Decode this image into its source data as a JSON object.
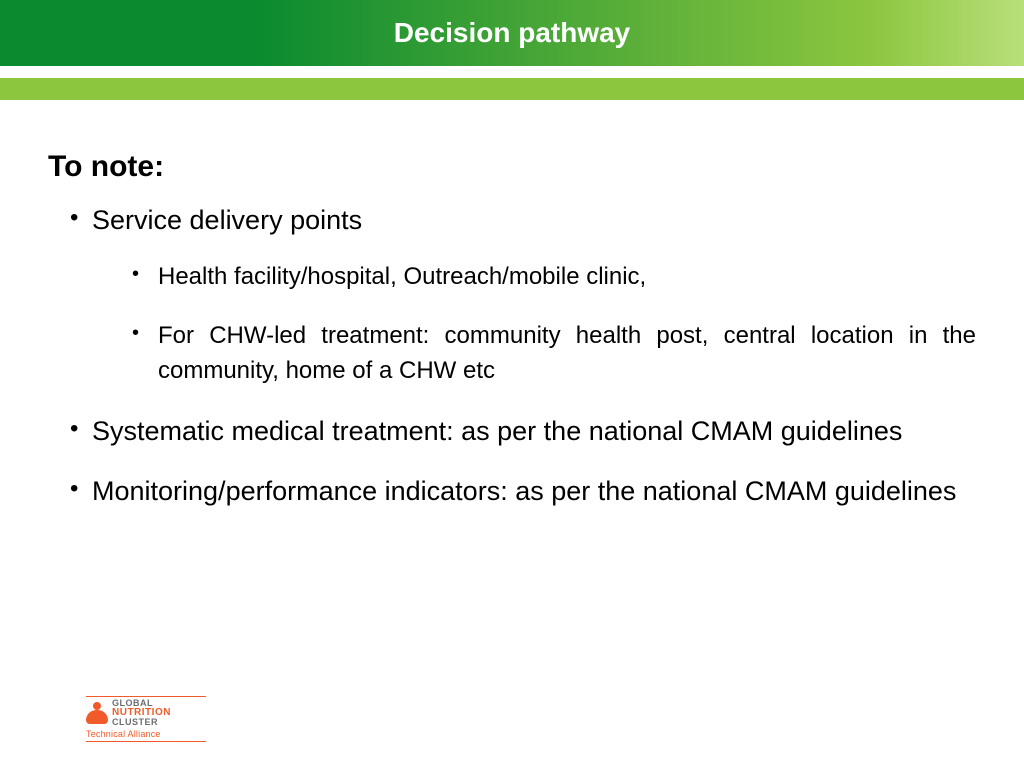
{
  "colors": {
    "header_gradient_start": "#0b8a2f",
    "header_gradient_end": "#8cc63f",
    "accent_bar": "#8cc63f",
    "text": "#000000",
    "title_text": "#ffffff",
    "logo_orange": "#f15a29",
    "logo_gray": "#6d6e71",
    "background": "#ffffff"
  },
  "typography": {
    "title_fontsize": 28,
    "heading_fontsize": 30,
    "bullet_l1_fontsize": 27,
    "bullet_l2_fontsize": 24
  },
  "header": {
    "title": "Decision pathway"
  },
  "content": {
    "heading": "To note:",
    "bullets": [
      {
        "text": "Service delivery points",
        "children": [
          {
            "text": "Health facility/hospital, Outreach/mobile clinic,"
          },
          {
            "text": "For CHW-led treatment: community health post, central location in the community, home of a CHW etc"
          }
        ]
      },
      {
        "text": "Systematic medical treatment:  as per the national CMAM guidelines"
      },
      {
        "text": "Monitoring/performance indicators: as per the national CMAM guidelines"
      }
    ]
  },
  "logo": {
    "line1": "GLOBAL",
    "line2": "NUTRITION",
    "line3": "CLUSTER",
    "sub": "Technical Alliance"
  }
}
